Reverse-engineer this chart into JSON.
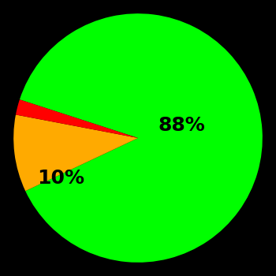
{
  "slices": [
    88,
    10,
    2
  ],
  "colors": [
    "#00ff00",
    "#ffaa00",
    "#ff0000"
  ],
  "labels": [
    "88%",
    "10%",
    ""
  ],
  "background_color": "#000000",
  "startangle": 162,
  "label_fontsize": 18,
  "label_fontweight": "bold",
  "label_color": "#000000",
  "figsize": [
    3.5,
    3.5
  ],
  "dpi": 100
}
